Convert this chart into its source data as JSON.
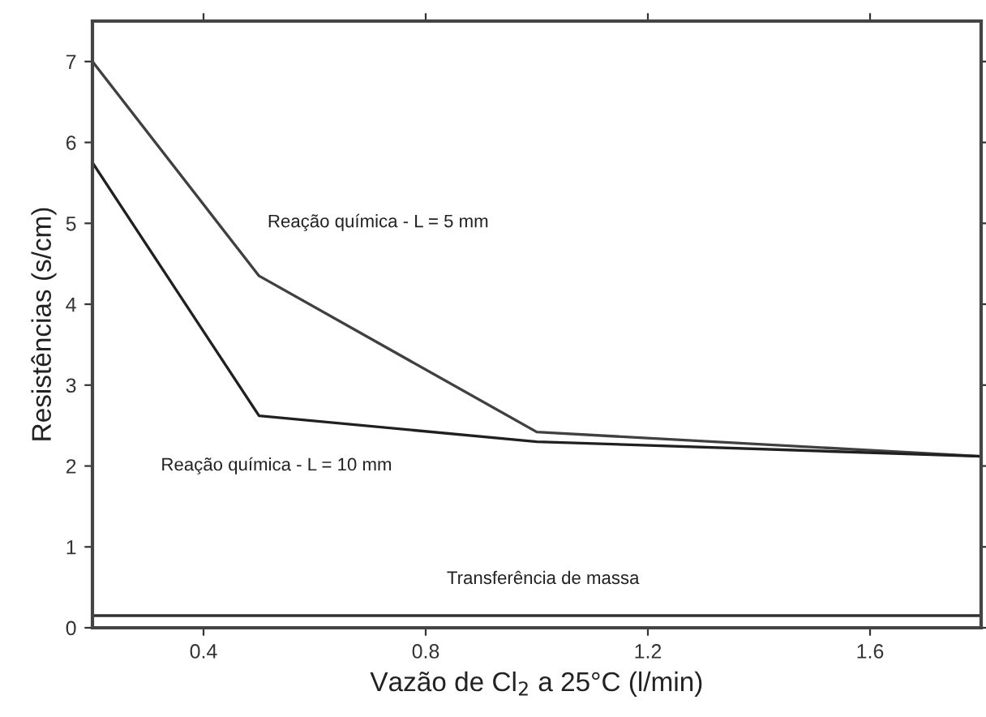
{
  "chart_data": {
    "type": "line",
    "xlabel": "Vazão de Cl$_{2}$ a 25°C (l/min)",
    "ylabel": "Resistências (s/cm)",
    "xlim": [
      0.2,
      1.8
    ],
    "ylim": [
      0,
      7.5
    ],
    "xticks": [
      0.4,
      0.8,
      1.2,
      1.6
    ],
    "yticks": [
      0,
      1,
      2,
      3,
      4,
      5,
      6,
      7
    ],
    "grid": false,
    "legend": false,
    "marker": "none",
    "line_style": "solid",
    "series": [
      {
        "color": "#404040",
        "x": [
          0.2,
          0.5,
          1.0,
          1.8
        ],
        "values": [
          7.0,
          4.35,
          2.42,
          2.12
        ]
      },
      {
        "color": "#202020",
        "x": [
          0.2,
          0.5,
          1.0,
          1.8
        ],
        "values": [
          5.75,
          2.62,
          2.3,
          2.12
        ]
      },
      {
        "color": "#303030",
        "x": [
          0.2,
          1.8
        ],
        "values": [
          0.15,
          0.15
        ]
      }
    ],
    "annotations": [
      "Reação química - L = 5 mm",
      "Reação química - L = 10 mm",
      "Transferência de massa"
    ]
  }
}
